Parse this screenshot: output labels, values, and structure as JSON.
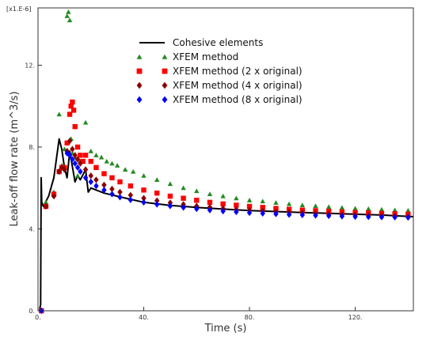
{
  "chart_data": {
    "type": "scatter",
    "title": "",
    "multiplier_label": "[x1.E-6]",
    "xlabel": "Time (s)",
    "ylabel": "Leak-off flow rate (m^3/s)",
    "xlim": [
      0,
      142
    ],
    "ylim": [
      0,
      14.8
    ],
    "xticks": [
      0,
      40,
      80,
      120
    ],
    "xtick_labels": [
      "0.",
      "40.",
      "80.",
      "120."
    ],
    "yticks": [
      0,
      4,
      8,
      12
    ],
    "ytick_labels": [
      "0.",
      "4.",
      "8.",
      "12."
    ],
    "legend_position": "top-center",
    "series": [
      {
        "name": "Cohesive elements",
        "kind": "line",
        "color": "#000000",
        "x": [
          0.5,
          1.0,
          1.2,
          1.4,
          2,
          4,
          6,
          8,
          9,
          10,
          11,
          12,
          14,
          15,
          16,
          18,
          19,
          20,
          22,
          25,
          30,
          35,
          40,
          50,
          60,
          70,
          80,
          90,
          100,
          110,
          120,
          130,
          142
        ],
        "y": [
          0,
          0.3,
          6.5,
          5.3,
          5.1,
          5.6,
          6.5,
          8.4,
          7.9,
          7.0,
          6.5,
          7.8,
          6.3,
          6.6,
          6.4,
          6.9,
          5.8,
          6.0,
          5.9,
          5.75,
          5.6,
          5.45,
          5.3,
          5.15,
          5.05,
          4.97,
          4.9,
          4.85,
          4.8,
          4.76,
          4.72,
          4.68,
          4.6
        ]
      },
      {
        "name": "XFEM method",
        "kind": "marker",
        "marker": "triangle",
        "color": "#228B22",
        "x": [
          1.3,
          3,
          6,
          8,
          9,
          10,
          11,
          11.5,
          12,
          12.5,
          13,
          14,
          15,
          16,
          18,
          20,
          22,
          24,
          26,
          28,
          30,
          33,
          36,
          40,
          45,
          50,
          55,
          60,
          65,
          70,
          75,
          80,
          85,
          90,
          95,
          100,
          105,
          110,
          115,
          120,
          125,
          130,
          135,
          140
        ],
        "y": [
          0,
          5.3,
          5.8,
          9.6,
          7.1,
          7.9,
          14.4,
          14.6,
          14.2,
          8.4,
          7.7,
          7.5,
          6.6,
          7.3,
          9.2,
          7.8,
          7.6,
          7.5,
          7.3,
          7.2,
          7.1,
          6.9,
          6.8,
          6.6,
          6.4,
          6.2,
          6.0,
          5.85,
          5.7,
          5.6,
          5.5,
          5.4,
          5.35,
          5.28,
          5.22,
          5.16,
          5.12,
          5.08,
          5.04,
          5.0,
          4.98,
          4.95,
          4.92,
          4.9
        ]
      },
      {
        "name": "XFEM method (2 x original)",
        "kind": "marker",
        "marker": "square",
        "color": "#FF0000",
        "x": [
          1.3,
          3,
          6,
          8,
          9,
          10,
          11,
          12,
          12.5,
          13,
          13.5,
          14,
          15,
          16,
          17,
          18,
          20,
          22,
          25,
          28,
          31,
          35,
          40,
          45,
          50,
          55,
          60,
          65,
          70,
          75,
          80,
          85,
          90,
          95,
          100,
          105,
          110,
          115,
          120,
          125,
          130,
          135,
          140
        ],
        "y": [
          0,
          5.1,
          5.7,
          6.8,
          7.0,
          7.0,
          8.2,
          9.6,
          10.0,
          10.2,
          9.8,
          9.0,
          8.0,
          7.6,
          7.3,
          7.6,
          7.3,
          7.0,
          6.7,
          6.5,
          6.3,
          6.1,
          5.9,
          5.75,
          5.6,
          5.5,
          5.4,
          5.3,
          5.22,
          5.16,
          5.1,
          5.05,
          5.0,
          4.96,
          4.92,
          4.89,
          4.86,
          4.83,
          4.8,
          4.78,
          4.76,
          4.74,
          4.72
        ]
      },
      {
        "name": "XFEM method (4 x original)",
        "kind": "marker",
        "marker": "diamond",
        "color": "#8B0000",
        "x": [
          1.3,
          3,
          6,
          8,
          9,
          10,
          11,
          12,
          13,
          14,
          15,
          16,
          18,
          20,
          22,
          25,
          28,
          31,
          35,
          40,
          45,
          50,
          55,
          60,
          65,
          70,
          75,
          80,
          85,
          90,
          95,
          100,
          105,
          110,
          115,
          120,
          125,
          130,
          135,
          140
        ],
        "y": [
          0,
          5.1,
          5.6,
          6.8,
          7.0,
          6.9,
          7.8,
          8.3,
          7.9,
          7.6,
          7.4,
          7.2,
          6.9,
          6.6,
          6.4,
          6.15,
          5.95,
          5.8,
          5.65,
          5.5,
          5.38,
          5.28,
          5.2,
          5.12,
          5.06,
          5.0,
          4.95,
          4.91,
          4.87,
          4.84,
          4.81,
          4.78,
          4.75,
          4.72,
          4.7,
          4.68,
          4.66,
          4.64,
          4.62,
          4.6
        ]
      },
      {
        "name": "XFEM method (8 x original)",
        "kind": "marker",
        "marker": "diamond",
        "color": "#0000FF",
        "x": [
          1.3,
          11,
          12,
          13,
          14,
          15,
          16,
          18,
          20,
          22,
          25,
          28,
          31,
          35,
          40,
          45,
          50,
          55,
          60,
          65,
          70,
          75,
          80,
          85,
          90,
          95,
          100,
          105,
          110,
          115,
          120,
          125,
          130,
          135,
          140
        ],
        "y": [
          0,
          7.7,
          7.6,
          7.4,
          7.2,
          7.0,
          6.8,
          6.5,
          6.3,
          6.1,
          5.9,
          5.7,
          5.55,
          5.42,
          5.3,
          5.2,
          5.12,
          5.05,
          4.98,
          4.92,
          4.87,
          4.83,
          4.79,
          4.76,
          4.73,
          4.7,
          4.68,
          4.66,
          4.64,
          4.62,
          4.6,
          4.59,
          4.58,
          4.57,
          4.56
        ]
      }
    ]
  }
}
